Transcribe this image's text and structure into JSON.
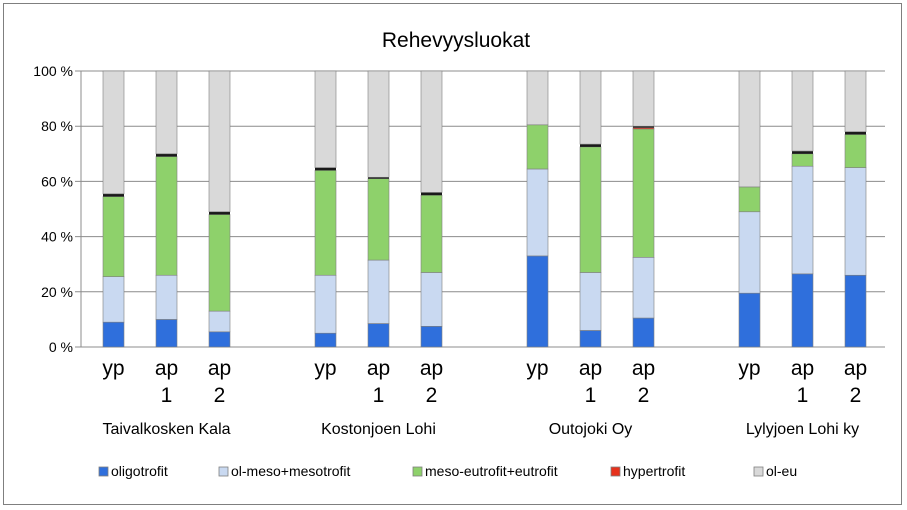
{
  "chart_data": {
    "type": "bar",
    "stacked": true,
    "title": "Rehevyysluokat",
    "xlabel": "",
    "ylabel": "",
    "ylim": [
      0,
      100
    ],
    "y_ticks": [
      "0 %",
      "20 %",
      "40 %",
      "60 %",
      "80 %",
      "100 %"
    ],
    "grid": true,
    "legend_position": "bottom",
    "groups": [
      {
        "name": "Taivalkosken Kala",
        "bars": [
          {
            "label": [
              "yp"
            ],
            "values": [
              9,
              16.5,
              29,
              0,
              1,
              44.5
            ]
          },
          {
            "label": [
              "ap",
              "1"
            ],
            "values": [
              10,
              16,
              43,
              0,
              1,
              30
            ]
          },
          {
            "label": [
              "ap",
              "2"
            ],
            "values": [
              5.5,
              7.5,
              35,
              0,
              1,
              51
            ]
          }
        ]
      },
      {
        "name": "Kostonjoen Lohi",
        "bars": [
          {
            "label": [
              "yp"
            ],
            "values": [
              5,
              21,
              38,
              0,
              1,
              35
            ]
          },
          {
            "label": [
              "ap",
              "1"
            ],
            "values": [
              8.5,
              23,
              29.5,
              0,
              0.5,
              38.5
            ]
          },
          {
            "label": [
              "ap",
              "2"
            ],
            "values": [
              7.5,
              19.5,
              28,
              0,
              1,
              44
            ]
          }
        ]
      },
      {
        "name": "Outojoki Oy",
        "bars": [
          {
            "label": [
              "yp"
            ],
            "values": [
              33,
              31.5,
              16,
              0,
              0,
              19.5
            ]
          },
          {
            "label": [
              "ap",
              "1"
            ],
            "values": [
              6,
              21,
              45.5,
              0,
              1,
              26.5
            ]
          },
          {
            "label": [
              "ap",
              "2"
            ],
            "values": [
              10.5,
              22,
              46.5,
              0.5,
              0.5,
              20
            ]
          }
        ]
      },
      {
        "name": "Lylyjoen Lohi ky",
        "bars": [
          {
            "label": [
              "yp"
            ],
            "values": [
              19.5,
              29.5,
              9,
              0,
              0,
              42
            ]
          },
          {
            "label": [
              "ap",
              "1"
            ],
            "values": [
              26.5,
              39,
              4.5,
              0,
              1,
              29
            ]
          },
          {
            "label": [
              "ap",
              "2"
            ],
            "values": [
              26,
              39,
              12,
              0,
              1,
              22
            ]
          }
        ]
      }
    ],
    "series": [
      {
        "name": "oligotrofit",
        "color": "#2f6fdc"
      },
      {
        "name": "ol-meso+mesotrofit",
        "color": "#c9d9f1"
      },
      {
        "name": "meso-eutrofit+eutrofit",
        "color": "#8ed16b"
      },
      {
        "name": "hypertrofit",
        "color": "#e6311c"
      },
      {
        "name": "",
        "color": "#1a1a1a",
        "legend": false
      },
      {
        "name": "ol-eu",
        "color": "#d9d9d9"
      }
    ]
  }
}
